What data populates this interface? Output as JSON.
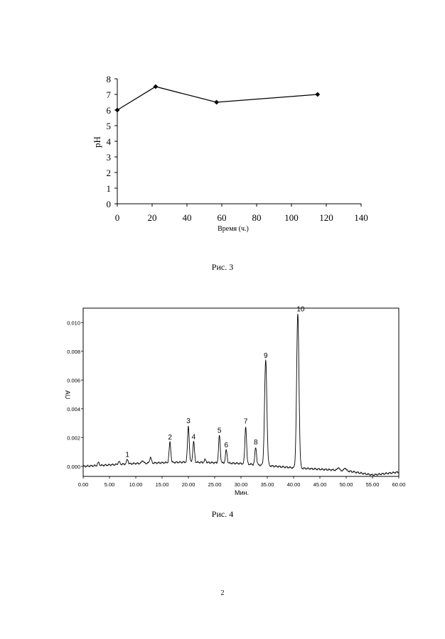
{
  "chart_data": [
    {
      "type": "line",
      "title": "",
      "xlabel": "Время (ч.)",
      "ylabel": "pH",
      "xlim": [
        0,
        140
      ],
      "ylim": [
        0,
        8
      ],
      "x_ticks": [
        "0",
        "20",
        "40",
        "60",
        "80",
        "100",
        "120",
        "140"
      ],
      "y_ticks": [
        "0",
        "1",
        "2",
        "3",
        "4",
        "5",
        "6",
        "7",
        "8"
      ],
      "marker": "diamond",
      "grid": false,
      "series": [
        {
          "x": [
            0,
            22,
            57,
            115
          ],
          "values": [
            6.0,
            7.5,
            6.5,
            7.0
          ]
        }
      ],
      "caption": "Рис. 3"
    },
    {
      "type": "line",
      "title": "",
      "xlabel": "Мин.",
      "ylabel": "AU",
      "xlim": [
        0,
        60
      ],
      "ylim": [
        -0.0007,
        0.011
      ],
      "x_ticks": [
        "0.00",
        "5.00",
        "10.00",
        "15.00",
        "20.00",
        "25.00",
        "30.00",
        "35.00",
        "40.00",
        "45.00",
        "50.00",
        "55.00",
        "60.00"
      ],
      "y_ticks": [
        "0.000",
        "0.002",
        "0.004",
        "0.006",
        "0.008",
        "0.010"
      ],
      "grid": false,
      "baseline": [
        [
          0,
          0.0
        ],
        [
          10,
          0.0002
        ],
        [
          20,
          0.0003
        ],
        [
          30,
          0.0002
        ],
        [
          40,
          -0.0001
        ],
        [
          50,
          -0.0003
        ],
        [
          55,
          -0.0006
        ],
        [
          60,
          -0.0004
        ]
      ],
      "peaks": [
        {
          "label": "1",
          "x": 8.4,
          "height": 0.0003
        },
        {
          "label": "2",
          "x": 16.5,
          "height": 0.0014
        },
        {
          "label": "3",
          "x": 20.0,
          "height": 0.0025
        },
        {
          "label": "4",
          "x": 21.0,
          "height": 0.0014
        },
        {
          "label": "5",
          "x": 25.9,
          "height": 0.0019
        },
        {
          "label": "6",
          "x": 27.2,
          "height": 0.0009
        },
        {
          "label": "7",
          "x": 30.9,
          "height": 0.0026
        },
        {
          "label": "8",
          "x": 32.8,
          "height": 0.0012
        },
        {
          "label": "9",
          "x": 34.7,
          "height": 0.0073
        },
        {
          "label": "10",
          "x": 40.8,
          "height": 0.0107
        }
      ],
      "minor_peaks": [
        {
          "x": 2.9,
          "height": 0.0002
        },
        {
          "x": 6.8,
          "height": 0.0002
        },
        {
          "x": 11.3,
          "height": 0.0002
        },
        {
          "x": 12.8,
          "height": 0.0004
        },
        {
          "x": 23.2,
          "height": 0.0002
        },
        {
          "x": 48.5,
          "height": 0.0002
        },
        {
          "x": 49.8,
          "height": 0.0002
        }
      ],
      "caption": "Рис. 4"
    }
  ],
  "page_number": "2"
}
